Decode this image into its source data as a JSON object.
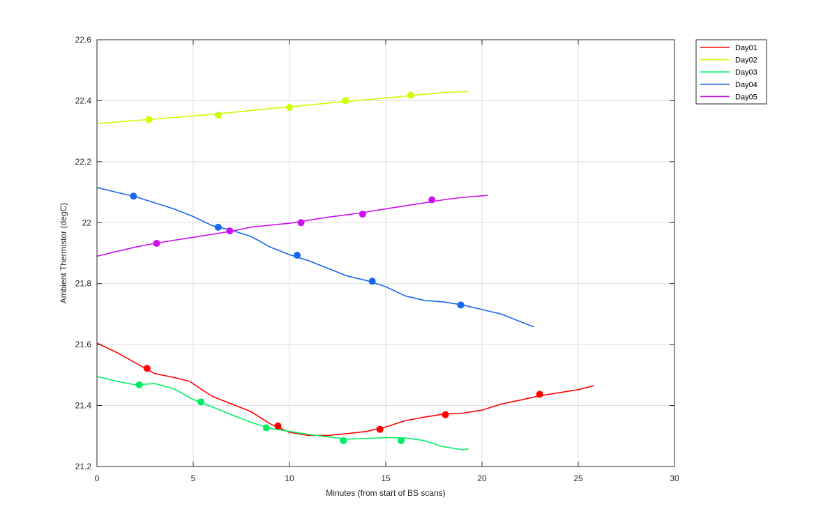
{
  "chart_data": {
    "type": "line",
    "title": "",
    "xlabel": "Minutes (from start of BS scans)",
    "ylabel": "Ambient Thermistor (degC)",
    "xlim": [
      0,
      30
    ],
    "ylim": [
      21.2,
      22.6
    ],
    "xticks": [
      "0",
      "5",
      "10",
      "15",
      "20",
      "25",
      "30"
    ],
    "yticks": [
      "21.2",
      "21.4",
      "21.6",
      "21.8",
      "22",
      "22.2",
      "22.4",
      "22.6"
    ],
    "grid": true,
    "legend_position": "outside-top-right",
    "series": [
      {
        "name": "Day01",
        "color": "#ff0000",
        "line": [
          [
            0,
            21.605
          ],
          [
            1,
            21.575
          ],
          [
            2,
            21.54
          ],
          [
            3,
            21.505
          ],
          [
            4,
            21.492
          ],
          [
            4.8,
            21.48
          ],
          [
            5.5,
            21.45
          ],
          [
            6,
            21.43
          ],
          [
            7,
            21.405
          ],
          [
            8,
            21.38
          ],
          [
            9,
            21.34
          ],
          [
            10,
            21.312
          ],
          [
            11,
            21.302
          ],
          [
            12,
            21.302
          ],
          [
            13,
            21.308
          ],
          [
            14,
            21.315
          ],
          [
            15,
            21.33
          ],
          [
            16,
            21.35
          ],
          [
            17,
            21.362
          ],
          [
            18,
            21.372
          ],
          [
            19,
            21.375
          ],
          [
            20,
            21.385
          ],
          [
            21,
            21.405
          ],
          [
            22,
            21.418
          ],
          [
            23,
            21.432
          ],
          [
            24,
            21.442
          ],
          [
            25,
            21.452
          ],
          [
            25.8,
            21.465
          ]
        ],
        "markers": [
          [
            2.6,
            21.522
          ],
          [
            9.4,
            21.333
          ],
          [
            14.7,
            21.322
          ],
          [
            18.1,
            21.37
          ],
          [
            23,
            21.437
          ]
        ]
      },
      {
        "name": "Day02",
        "color": "#ccff00",
        "line": [
          [
            0,
            22.325
          ],
          [
            2,
            22.335
          ],
          [
            4,
            22.345
          ],
          [
            6,
            22.355
          ],
          [
            8,
            22.368
          ],
          [
            10,
            22.38
          ],
          [
            12,
            22.392
          ],
          [
            14,
            22.403
          ],
          [
            16,
            22.415
          ],
          [
            18,
            22.427
          ],
          [
            19.3,
            22.43
          ]
        ],
        "markers": [
          [
            2.7,
            22.338
          ],
          [
            6.3,
            22.353
          ],
          [
            10,
            22.378
          ],
          [
            12.9,
            22.4
          ],
          [
            16.3,
            22.418
          ]
        ]
      },
      {
        "name": "Day03",
        "color": "#00ee66",
        "line": [
          [
            0,
            21.495
          ],
          [
            1,
            21.48
          ],
          [
            2,
            21.468
          ],
          [
            3,
            21.472
          ],
          [
            4,
            21.455
          ],
          [
            5,
            21.42
          ],
          [
            6,
            21.395
          ],
          [
            7,
            21.37
          ],
          [
            8,
            21.345
          ],
          [
            9,
            21.325
          ],
          [
            10,
            21.315
          ],
          [
            11,
            21.305
          ],
          [
            12,
            21.297
          ],
          [
            13,
            21.29
          ],
          [
            14,
            21.292
          ],
          [
            15,
            21.295
          ],
          [
            16,
            21.294
          ],
          [
            17,
            21.285
          ],
          [
            18,
            21.265
          ],
          [
            19,
            21.255
          ],
          [
            19.3,
            21.258
          ]
        ],
        "markers": [
          [
            2.2,
            21.468
          ],
          [
            5.4,
            21.412
          ],
          [
            8.8,
            21.327
          ],
          [
            12.8,
            21.285
          ],
          [
            15.8,
            21.285
          ]
        ]
      },
      {
        "name": "Day04",
        "color": "#1a66ee",
        "line": [
          [
            0,
            22.115
          ],
          [
            1,
            22.1
          ],
          [
            2,
            22.085
          ],
          [
            3,
            22.065
          ],
          [
            4,
            22.045
          ],
          [
            5,
            22.02
          ],
          [
            6,
            21.99
          ],
          [
            7,
            21.975
          ],
          [
            8,
            21.955
          ],
          [
            9,
            21.92
          ],
          [
            10,
            21.895
          ],
          [
            11,
            21.875
          ],
          [
            12,
            21.85
          ],
          [
            13,
            21.825
          ],
          [
            14,
            21.81
          ],
          [
            15,
            21.79
          ],
          [
            16,
            21.76
          ],
          [
            17,
            21.745
          ],
          [
            18,
            21.74
          ],
          [
            19,
            21.73
          ],
          [
            20,
            21.715
          ],
          [
            21,
            21.7
          ],
          [
            22,
            21.675
          ],
          [
            22.7,
            21.658
          ]
        ],
        "markers": [
          [
            1.9,
            22.087
          ],
          [
            6.3,
            21.985
          ],
          [
            10.4,
            21.893
          ],
          [
            14.3,
            21.808
          ],
          [
            18.9,
            21.73
          ]
        ]
      },
      {
        "name": "Day05",
        "color": "#cc11ee",
        "line": [
          [
            0,
            21.89
          ],
          [
            1,
            21.905
          ],
          [
            2,
            21.92
          ],
          [
            3,
            21.932
          ],
          [
            4,
            21.942
          ],
          [
            5,
            21.952
          ],
          [
            6,
            21.962
          ],
          [
            7,
            21.972
          ],
          [
            8,
            21.985
          ],
          [
            9,
            21.992
          ],
          [
            10,
            21.998
          ],
          [
            11,
            22.008
          ],
          [
            12,
            22.018
          ],
          [
            13,
            22.026
          ],
          [
            14,
            22.035
          ],
          [
            15,
            22.045
          ],
          [
            16,
            22.055
          ],
          [
            17,
            22.065
          ],
          [
            18,
            22.075
          ],
          [
            19,
            22.083
          ],
          [
            20,
            22.088
          ],
          [
            20.3,
            22.09
          ]
        ],
        "markers": [
          [
            3.1,
            21.932
          ],
          [
            6.9,
            21.973
          ],
          [
            10.6,
            22
          ],
          [
            13.8,
            22.028
          ],
          [
            17.4,
            22.075
          ]
        ]
      }
    ]
  }
}
